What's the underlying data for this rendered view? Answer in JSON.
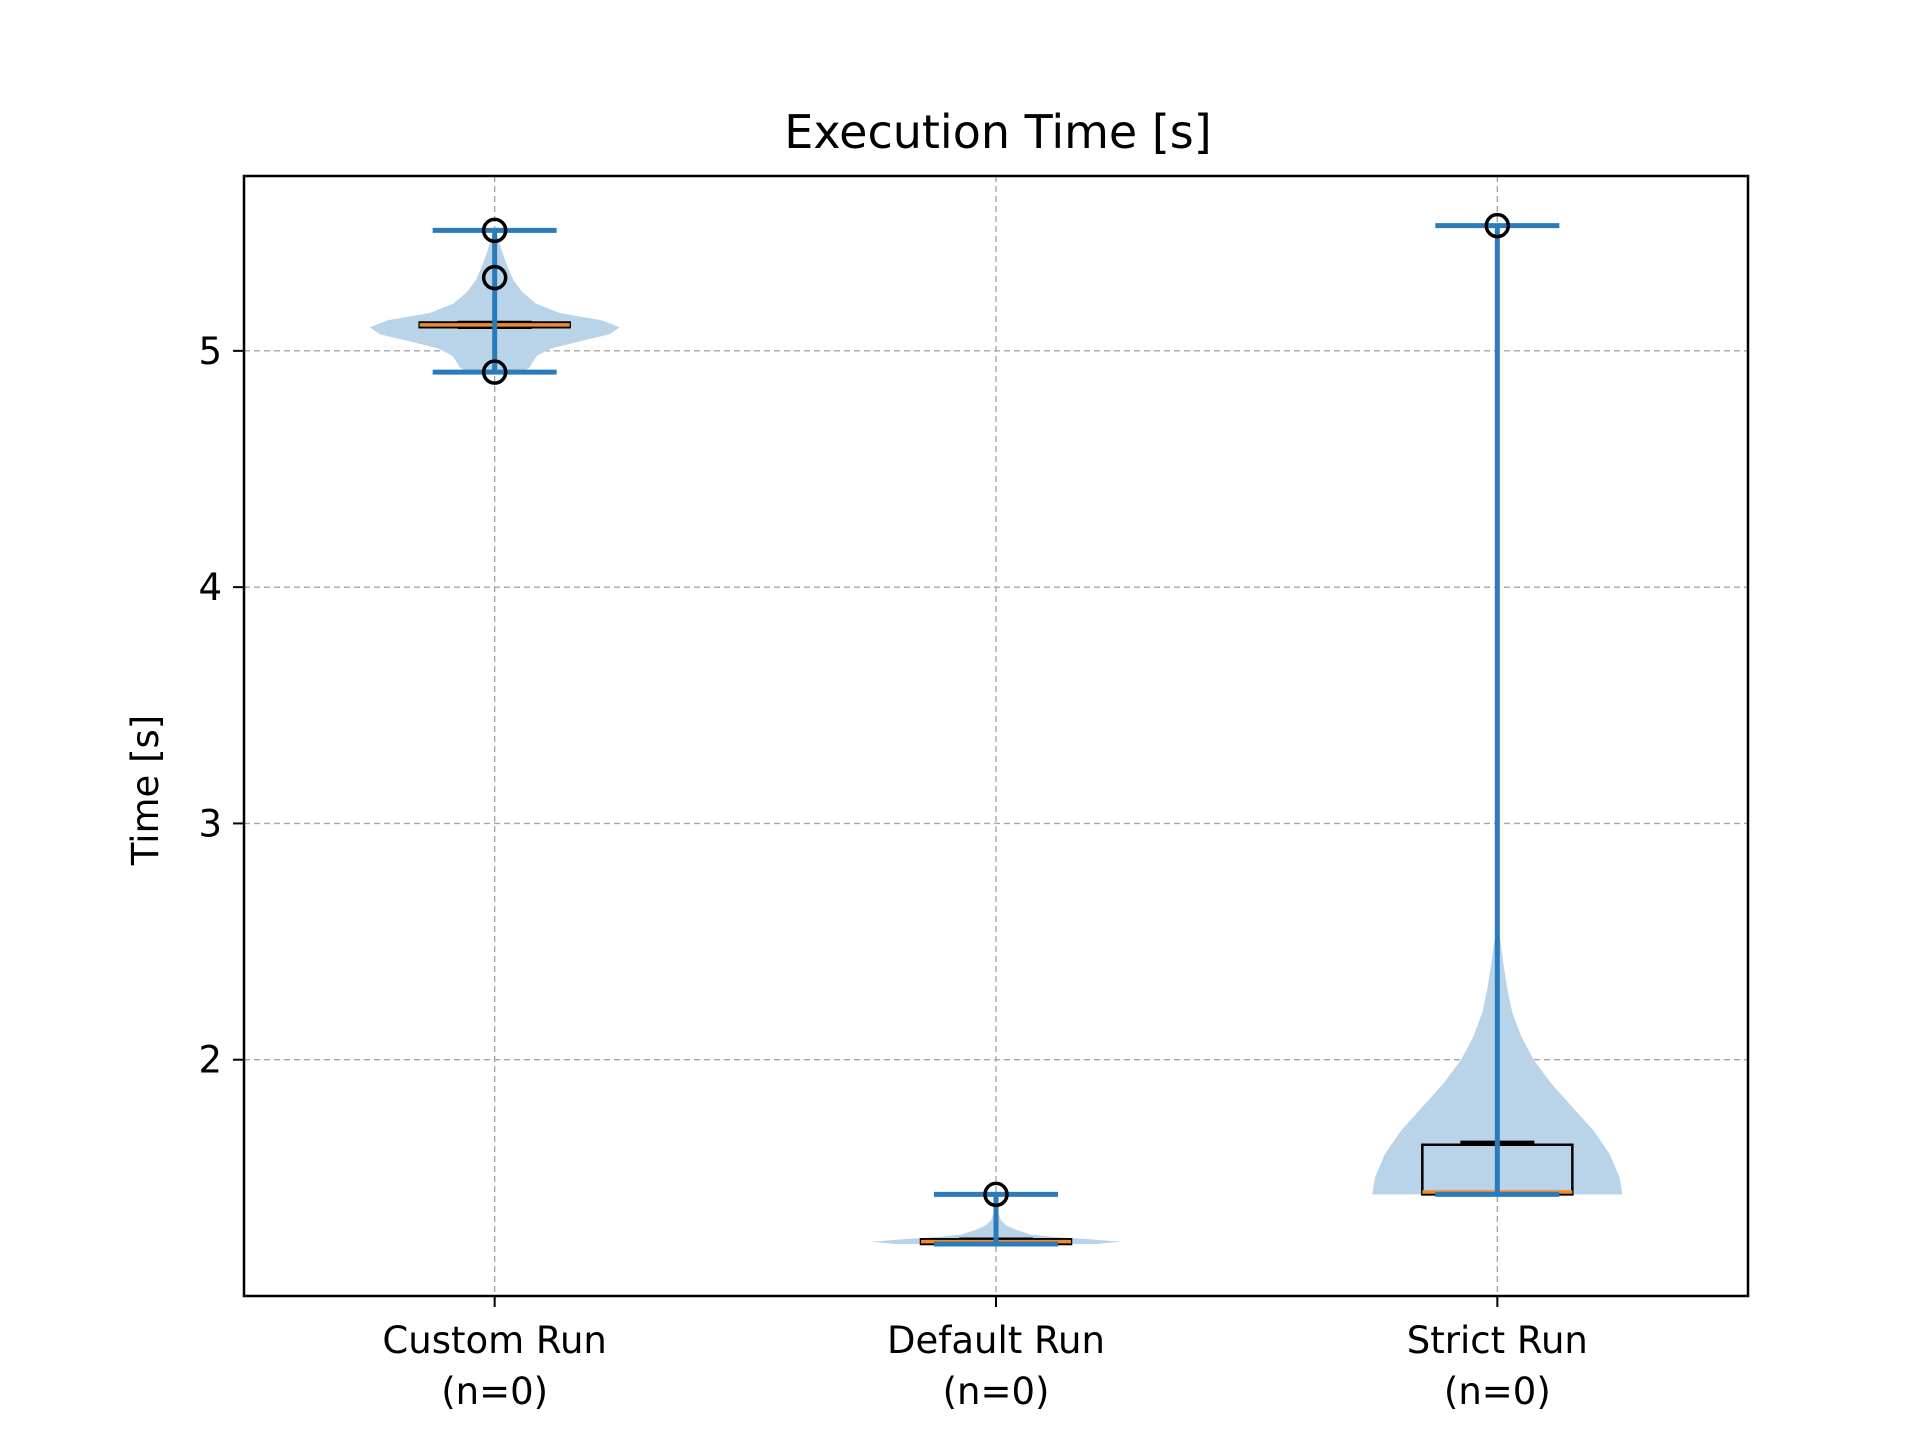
{
  "chart_data": {
    "type": "violin+box",
    "title": "Execution Time [s]",
    "xlabel": "",
    "ylabel": "Time [s]",
    "ylim": [
      1.0,
      5.74
    ],
    "yticks": [
      "2",
      "3",
      "4",
      "5"
    ],
    "ytick_values": [
      2,
      3,
      4,
      5
    ],
    "grid": true,
    "categories": [
      {
        "label": "Custom Run",
        "sublabel": "(n=0)"
      },
      {
        "label": "Default Run",
        "sublabel": "(n=0)"
      },
      {
        "label": "Strict Run",
        "sublabel": "(n=0)"
      }
    ],
    "groups": [
      {
        "min": 4.91,
        "max": 5.51,
        "q1": 5.1,
        "median": 5.11,
        "q3": 5.12,
        "whisker_low": 5.1,
        "whisker_high": 5.12,
        "outliers": [
          4.91,
          5.31,
          5.51
        ],
        "violin": [
          [
            4.91,
            0.22
          ],
          [
            4.93,
            0.28
          ],
          [
            4.95,
            0.3
          ],
          [
            4.98,
            0.34
          ],
          [
            5.01,
            0.45
          ],
          [
            5.04,
            0.68
          ],
          [
            5.07,
            0.92
          ],
          [
            5.1,
            1.0
          ],
          [
            5.13,
            0.85
          ],
          [
            5.16,
            0.52
          ],
          [
            5.2,
            0.33
          ],
          [
            5.25,
            0.22
          ],
          [
            5.3,
            0.15
          ],
          [
            5.36,
            0.1
          ],
          [
            5.42,
            0.06
          ],
          [
            5.47,
            0.03
          ],
          [
            5.51,
            0.01
          ]
        ]
      },
      {
        "min": 1.22,
        "max": 1.43,
        "q1": 1.22,
        "median": 1.23,
        "q3": 1.24,
        "whisker_low": 1.22,
        "whisker_high": 1.24,
        "outliers": [
          1.43
        ],
        "violin": [
          [
            1.22,
            0.8
          ],
          [
            1.23,
            1.0
          ],
          [
            1.24,
            0.75
          ],
          [
            1.25,
            0.45
          ],
          [
            1.26,
            0.28
          ],
          [
            1.28,
            0.16
          ],
          [
            1.3,
            0.08
          ],
          [
            1.32,
            0.04
          ],
          [
            1.35,
            0.02
          ],
          [
            1.39,
            0.01
          ],
          [
            1.43,
            0.005
          ]
        ]
      },
      {
        "min": 1.43,
        "max": 5.53,
        "q1": 1.43,
        "median": 1.44,
        "q3": 1.64,
        "whisker_low": 1.43,
        "whisker_high": 1.65,
        "outliers": [
          5.53
        ],
        "violin": [
          [
            1.43,
            1.0
          ],
          [
            1.5,
            0.98
          ],
          [
            1.6,
            0.9
          ],
          [
            1.7,
            0.77
          ],
          [
            1.8,
            0.6
          ],
          [
            1.9,
            0.43
          ],
          [
            2.0,
            0.29
          ],
          [
            2.1,
            0.19
          ],
          [
            2.2,
            0.12
          ],
          [
            2.3,
            0.08
          ],
          [
            2.4,
            0.05
          ],
          [
            2.5,
            0.025
          ],
          [
            2.55,
            0.01
          ],
          [
            2.6,
            0.0
          ]
        ]
      }
    ],
    "colors": {
      "violin_fill": "#b9d3e8",
      "stat_line": "#2b7bba",
      "box_edge": "#000000",
      "median_line": "#f08b2a",
      "grid": "#a8a8a8",
      "outlier": "#000000"
    }
  }
}
